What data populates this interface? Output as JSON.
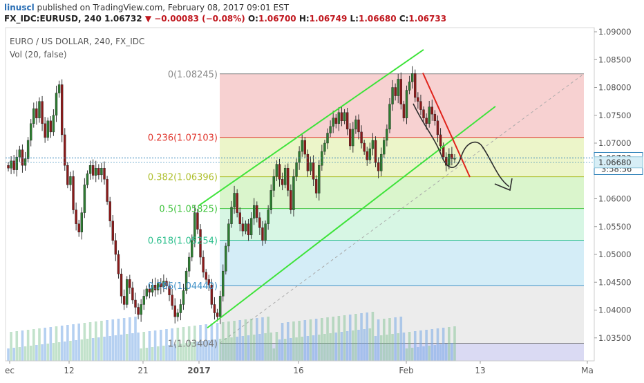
{
  "header": {
    "publisher_user": "linuscl",
    "published_text": " published on TradingView.com, February 08, 2017 09:01 EST",
    "symbol_interval": "FX_IDC:EURUSD, 240",
    "last_price": "1.06732",
    "change": "−0.00083 (−0.08%)",
    "o_label": "O:",
    "o_value": "1.06700",
    "h_label": "H:",
    "h_value": "1.06749",
    "l_label": "L:",
    "l_value": "1.06680",
    "c_label": "C:",
    "c_value": "1.06733"
  },
  "legend": {
    "symbol_title": "EURO / US DOLLAR, 240, FX_IDC",
    "volume_title": "Vol (20, false)"
  },
  "price_axis": {
    "ticks": [
      "1.09000",
      "1.08500",
      "1.08000",
      "1.07500",
      "1.07000",
      "1.06500",
      "1.06000",
      "1.05500",
      "1.05000",
      "1.04500",
      "1.04000",
      "1.03500"
    ],
    "last_price_label": "1.06733",
    "countdown_label": "3:58:56",
    "low_label": "1.06680"
  },
  "time_axis": {
    "ticks": [
      "ec",
      "12",
      "21",
      "2017",
      "16",
      "Feb",
      "13",
      "Ma"
    ]
  },
  "chart_data": {
    "type": "candlestick",
    "ylim": [
      1.031,
      1.0905
    ],
    "fibonacci": [
      {
        "label": "0(1.08245)",
        "level": 0,
        "price": 1.08245,
        "color": "#888888"
      },
      {
        "label": "0.236(1.07103)",
        "level": 0.236,
        "price": 1.07103,
        "color": "#e0352c"
      },
      {
        "label": "0.382(1.06396)",
        "level": 0.382,
        "price": 1.06396,
        "color": "#aebf2c"
      },
      {
        "label": "0.5(1.05825)",
        "level": 0.5,
        "price": 1.05825,
        "color": "#3fc33c"
      },
      {
        "label": "0.618(1.05254)",
        "level": 0.618,
        "price": 1.05254,
        "color": "#2bbf8c"
      },
      {
        "label": "0.786(1.04440)",
        "level": 0.786,
        "price": 1.0444,
        "color": "#3d8fc6"
      },
      {
        "label": "1(1.03404)",
        "level": 1,
        "price": 1.03404,
        "color": "#777777"
      }
    ],
    "close_path": [
      1.0655,
      1.0668,
      1.0652,
      1.0675,
      1.0688,
      1.066,
      1.0672,
      1.0705,
      1.0735,
      1.0762,
      1.0745,
      1.0775,
      1.0735,
      1.071,
      1.074,
      1.072,
      1.075,
      1.079,
      1.0805,
      1.0715,
      1.066,
      1.0625,
      1.064,
      1.058,
      1.0555,
      1.054,
      1.0575,
      1.0625,
      1.0645,
      1.066,
      1.0642,
      1.0655,
      1.0643,
      1.0655,
      1.0635,
      1.0595,
      1.056,
      1.0525,
      1.05,
      1.0465,
      1.0425,
      1.041,
      1.0455,
      1.044,
      1.0418,
      1.0405,
      1.0392,
      1.041,
      1.0425,
      1.0438,
      1.0432,
      1.0445,
      1.0436,
      1.0448,
      1.0442,
      1.0452,
      1.0443,
      1.0427,
      1.0408,
      1.0388,
      1.0395,
      1.041,
      1.0435,
      1.047,
      1.0495,
      1.0525,
      1.0575,
      1.0545,
      1.0495,
      1.0468,
      1.0455,
      1.0445,
      1.041,
      1.0395,
      1.0388,
      1.0425,
      1.047,
      1.0515,
      1.0555,
      1.0585,
      1.061,
      1.0575,
      1.0555,
      1.0542,
      1.0555,
      1.0535,
      1.0565,
      1.0588,
      1.0566,
      1.0548,
      1.0525,
      1.0555,
      1.058,
      1.0615,
      1.064,
      1.0662,
      1.0635,
      1.0625,
      1.0655,
      1.0615,
      1.058,
      1.064,
      1.0665,
      1.0685,
      1.0705,
      1.068,
      1.065,
      1.0665,
      1.0635,
      1.061,
      1.066,
      1.0685,
      1.07,
      1.0718,
      1.073,
      1.0745,
      1.0735,
      1.0755,
      1.074,
      1.0755,
      1.0725,
      1.0695,
      1.0725,
      1.0742,
      1.072,
      1.07,
      1.0685,
      1.067,
      1.069,
      1.0705,
      1.0665,
      1.065,
      1.068,
      1.0705,
      1.0725,
      1.077,
      1.08,
      1.0785,
      1.0815,
      1.077,
      1.0745,
      1.0795,
      1.081,
      1.0825,
      1.0782,
      1.0775,
      1.076,
      1.0745,
      1.0735,
      1.0765,
      1.0752,
      1.074,
      1.0715,
      1.0695,
      1.0675,
      1.066,
      1.068,
      1.0672,
      1.0673
    ],
    "series": [
      {
        "name": "EURUSD 240",
        "type": "candlestick"
      },
      {
        "name": "Vol (20, false)",
        "type": "volume"
      }
    ]
  }
}
